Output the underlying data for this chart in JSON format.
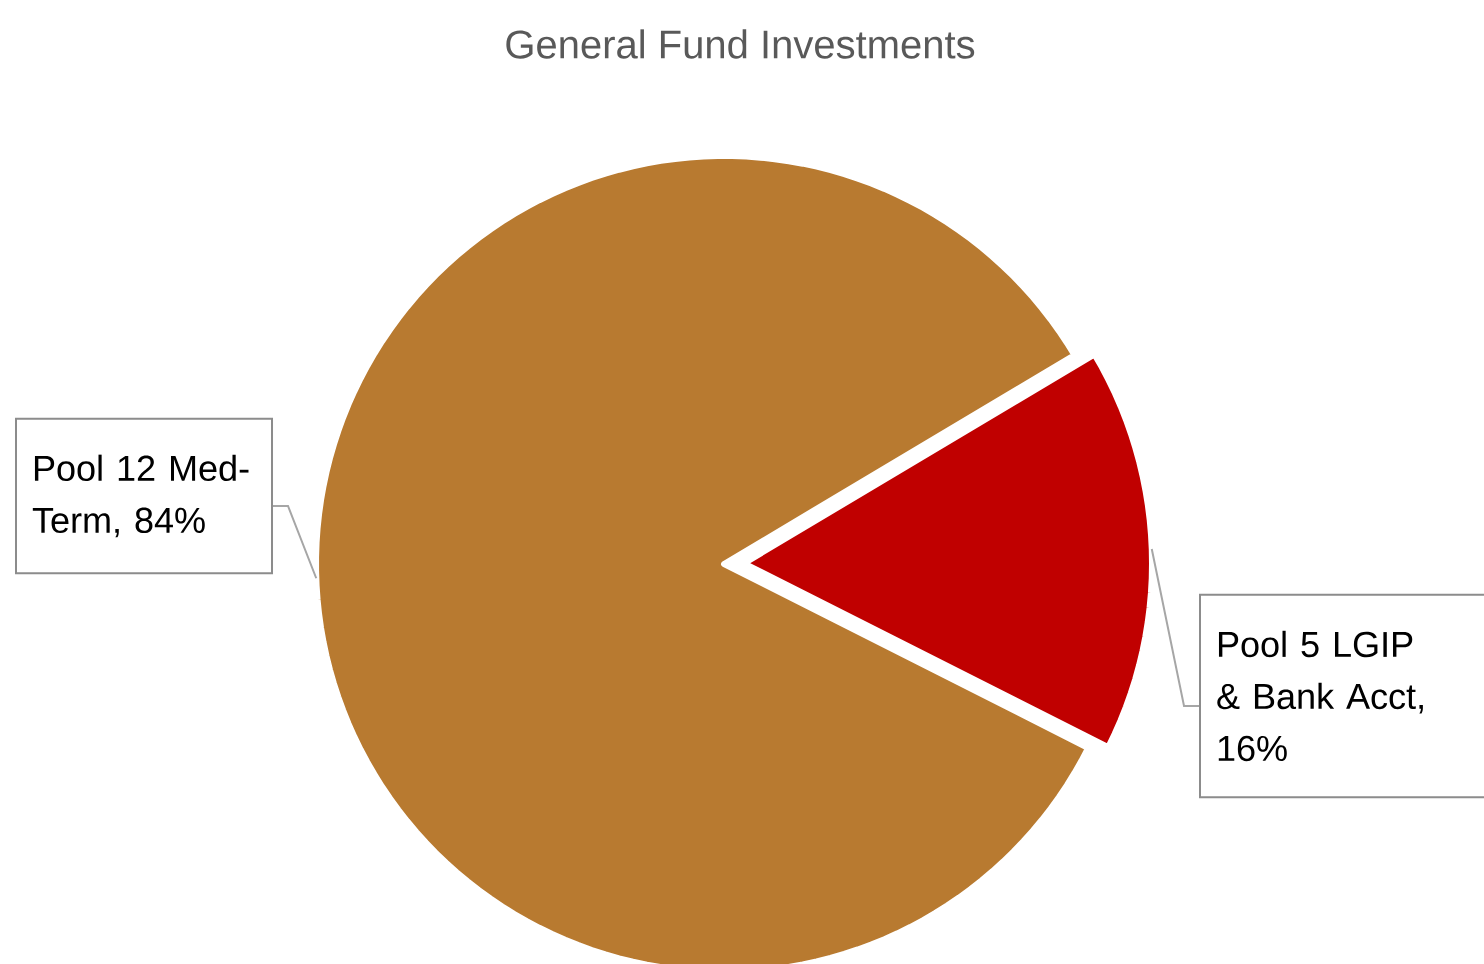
{
  "chart_data": {
    "type": "pie",
    "title": "General Fund Investments",
    "categories": [
      "Pool 12 Med-Term",
      "Pool 5 LGIP & Bank Acct"
    ],
    "values": [
      84,
      16
    ],
    "value_labels": [
      ", 84%",
      ", 16%"
    ],
    "colors": [
      "#b87a30",
      "#c00000"
    ]
  }
}
